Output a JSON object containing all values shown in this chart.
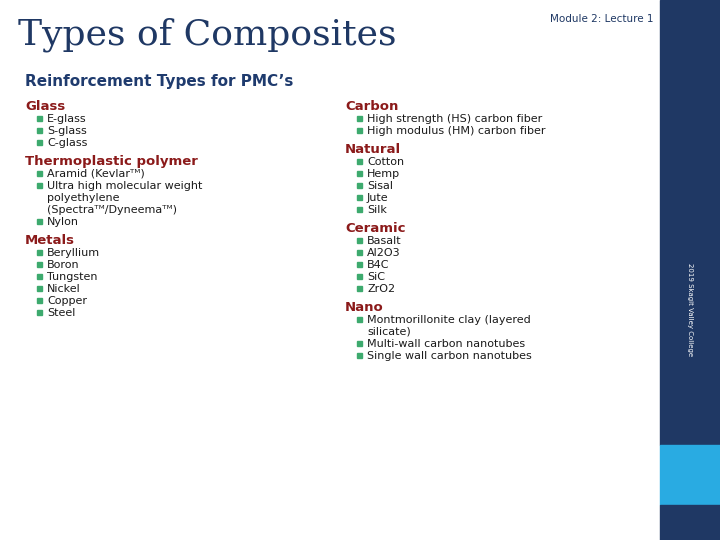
{
  "module_label": "Module 2: Lecture 1",
  "title": "Types of Composites",
  "subtitle": "Reinforcement Types for PMC’s",
  "bg_color": "#FFFFFF",
  "title_color": "#1F3864",
  "subtitle_color": "#1F3B6E",
  "category_color": "#8B1A1A",
  "bullet_color": "#3DAA6E",
  "text_color": "#1A1A1A",
  "module_color": "#1F3864",
  "sidebar_dark": "#1F3864",
  "sidebar_light": "#29ABE2",
  "left_col": {
    "categories": [
      {
        "name": "Glass",
        "items": [
          "E-glass",
          "S-glass",
          "C-glass"
        ]
      },
      {
        "name": "Thermoplastic polymer",
        "items": [
          "Aramid (Kevlarᵀᴹ)",
          "Ultra high molecular weight\npolyethylene\n(Spectraᵀᴹ/Dyneemaᵀᴹ)",
          "Nylon"
        ]
      },
      {
        "name": "Metals",
        "items": [
          "Beryllium",
          "Boron",
          "Tungsten",
          "Nickel",
          "Copper",
          "Steel"
        ]
      }
    ]
  },
  "right_col": {
    "categories": [
      {
        "name": "Carbon",
        "items": [
          "High strength (HS) carbon fiber",
          "High modulus (HM) carbon fiber"
        ]
      },
      {
        "name": "Natural",
        "items": [
          "Cotton",
          "Hemp",
          "Sisal",
          "Jute",
          "Silk"
        ]
      },
      {
        "name": "Ceramic",
        "items": [
          "Basalt",
          "Al2O3",
          "B4C",
          "SiC",
          "ZrO2"
        ]
      },
      {
        "name": "Nano",
        "items": [
          "Montmorillonite clay (layered\nsilicate)",
          "Multi-wall carbon nanotubes",
          "Single wall carbon nanotubes"
        ]
      }
    ]
  },
  "sidebar_text": "2019 Skagit Valley College"
}
